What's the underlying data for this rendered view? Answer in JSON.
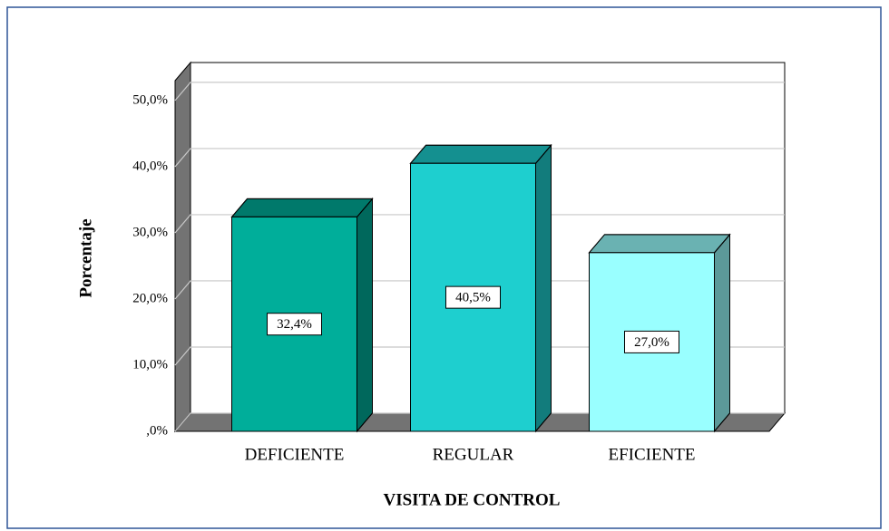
{
  "chart_data": {
    "type": "bar3d",
    "x_label": "VISITA DE CONTROL",
    "y_label": "Porcentaje",
    "categories": [
      "DEFICIENTE",
      "REGULAR",
      "EFICIENTE"
    ],
    "values": [
      32.4,
      40.5,
      27.0
    ],
    "value_labels": [
      "32,4%",
      "40,5%",
      "27,0%"
    ],
    "colors": [
      "#00ae9a",
      "#1ecfcf",
      "#99ffff"
    ],
    "ylim": [
      0,
      53
    ],
    "yticks": [
      {
        "value": 0,
        "label": ",0%"
      },
      {
        "value": 10,
        "label": "10,0%"
      },
      {
        "value": 20,
        "label": "20,0%"
      },
      {
        "value": 30,
        "label": "30,0%"
      },
      {
        "value": 40,
        "label": "40,0%"
      },
      {
        "value": 50,
        "label": "50,0%"
      }
    ],
    "grid": true
  }
}
